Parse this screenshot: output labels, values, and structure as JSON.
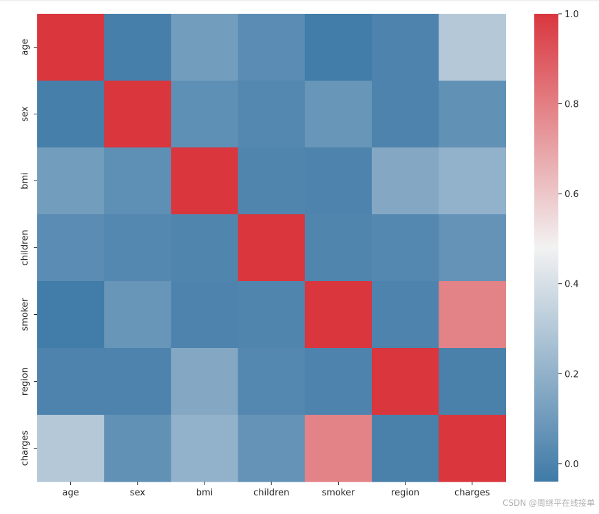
{
  "chart_data": {
    "type": "heatmap",
    "title": "",
    "xlabel": "",
    "ylabel": "",
    "x_categories": [
      "age",
      "sex",
      "bmi",
      "children",
      "smoker",
      "region",
      "charges"
    ],
    "y_categories": [
      "age",
      "sex",
      "bmi",
      "children",
      "smoker",
      "region",
      "charges"
    ],
    "values": [
      [
        1.0,
        -0.02,
        0.11,
        0.04,
        -0.03,
        0.0,
        0.3
      ],
      [
        -0.02,
        1.0,
        0.05,
        0.02,
        0.08,
        0.0,
        0.06
      ],
      [
        0.11,
        0.05,
        1.0,
        0.01,
        0.0,
        0.16,
        0.2
      ],
      [
        0.04,
        0.02,
        0.01,
        1.0,
        0.01,
        0.02,
        0.07
      ],
      [
        -0.03,
        0.08,
        0.0,
        0.01,
        1.0,
        0.0,
        0.79
      ],
      [
        0.0,
        0.0,
        0.16,
        0.02,
        0.0,
        1.0,
        -0.01
      ],
      [
        0.3,
        0.06,
        0.2,
        0.07,
        0.79,
        -0.01,
        1.0
      ]
    ],
    "colorbar": {
      "vmin": -0.04,
      "vmax": 1.0,
      "ticks": [
        "0.0",
        "0.2",
        "0.4",
        "0.6",
        "0.8",
        "1.0"
      ],
      "tick_values": [
        0.0,
        0.2,
        0.4,
        0.6,
        0.8,
        1.0
      ],
      "colors": {
        "low": "#3f7aa7",
        "mid": "#f2f2f2",
        "high": "#d9363e"
      }
    }
  },
  "watermark": "CSDN @周继平在线接单"
}
